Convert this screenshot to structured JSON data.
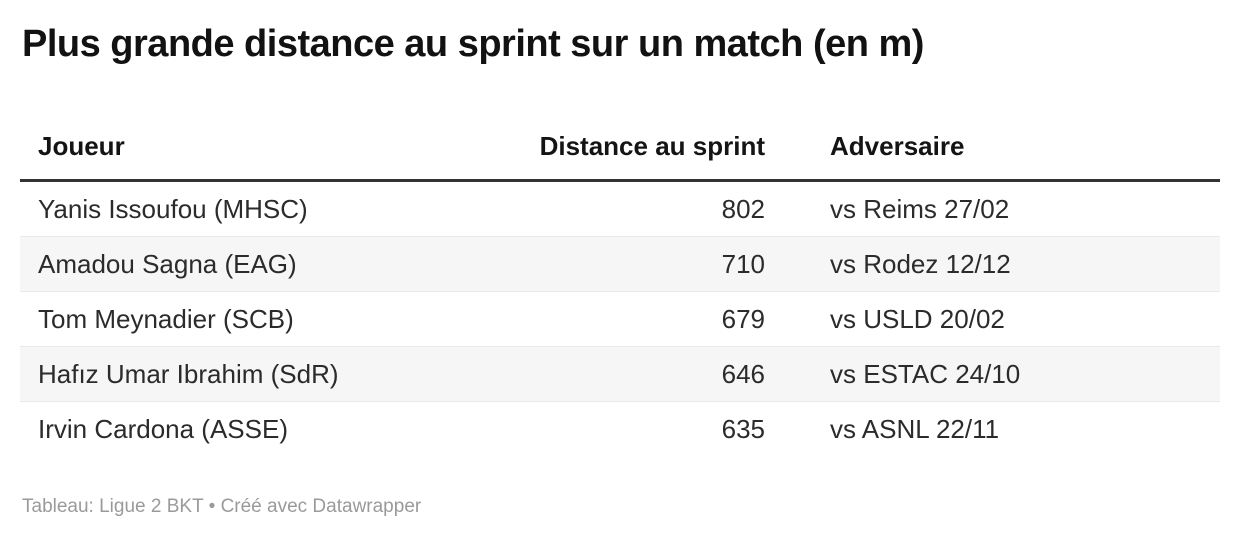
{
  "title": "Plus grande distance au sprint sur un match (en m)",
  "table": {
    "columns": {
      "joueur": "Joueur",
      "distance": "Distance au sprint",
      "adversaire": "Adversaire"
    },
    "rows": [
      {
        "joueur": "Yanis Issoufou (MHSC)",
        "distance": "802",
        "adversaire": "vs Reims 27/02"
      },
      {
        "joueur": "Amadou Sagna (EAG)",
        "distance": "710",
        "adversaire": "vs Rodez 12/12"
      },
      {
        "joueur": "Tom Meynadier (SCB)",
        "distance": "679",
        "adversaire": "vs USLD 20/02"
      },
      {
        "joueur": "Hafız Umar Ibrahim (SdR)",
        "distance": "646",
        "adversaire": "vs ESTAC 24/10"
      },
      {
        "joueur": "Irvin Cardona (ASSE)",
        "distance": "635",
        "adversaire": "vs ASNL 22/11"
      }
    ]
  },
  "footer": {
    "source": "Tableau: Ligue 2 BKT",
    "separator": "•",
    "attribution": "Créé avec Datawrapper"
  },
  "colors": {
    "title_text": "#121212",
    "header_text": "#141414",
    "body_text": "#2b2b2b",
    "header_rule": "#333333",
    "row_alt_bg": "#f6f6f6",
    "row_separator": "#e9e9e9",
    "footer_text": "#9a9a9a",
    "background": "#ffffff"
  },
  "chart_data": {
    "type": "table",
    "title": "Plus grande distance au sprint sur un match (en m)",
    "columns": [
      "Joueur",
      "Distance au sprint",
      "Adversaire"
    ],
    "rows": [
      [
        "Yanis Issoufou (MHSC)",
        802,
        "vs Reims 27/02"
      ],
      [
        "Amadou Sagna (EAG)",
        710,
        "vs Rodez 12/12"
      ],
      [
        "Tom Meynadier (SCB)",
        679,
        "vs USLD 20/02"
      ],
      [
        "Hafız Umar Ibrahim (SdR)",
        646,
        "vs ESTAC 24/10"
      ],
      [
        "Irvin Cardona (ASSE)",
        635,
        "vs ASNL 22/11"
      ]
    ],
    "value_column": "Distance au sprint",
    "unit": "m",
    "layout_hints": {
      "striped_rows": true,
      "distance_align": "right",
      "header_rule": true
    },
    "source": "Ligue 2 BKT",
    "attribution": "Créé avec Datawrapper"
  }
}
